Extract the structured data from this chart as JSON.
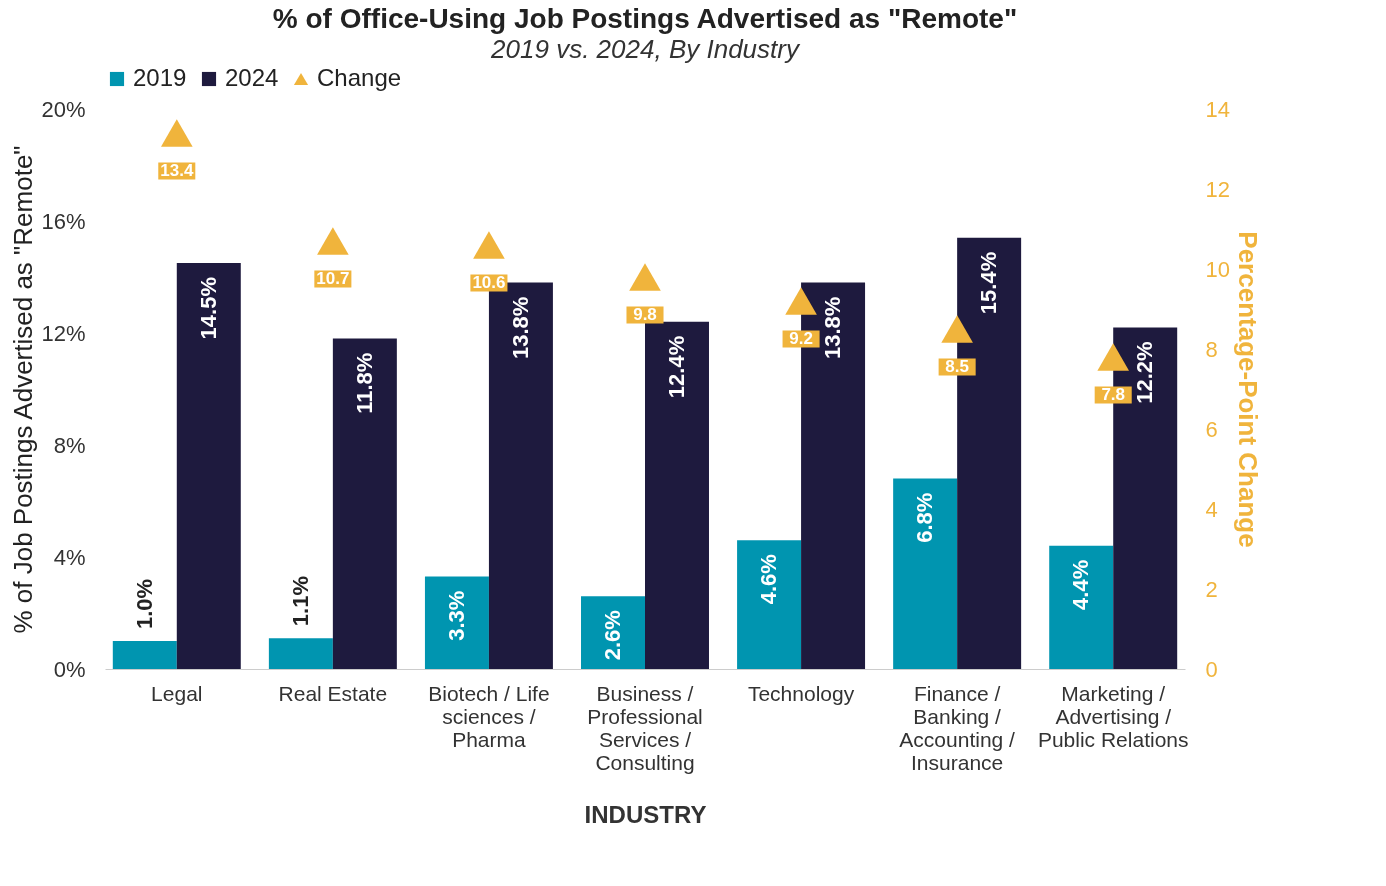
{
  "chart_data": {
    "type": "bar",
    "title": "% of Office-Using Job Postings Advertised as \"Remote\"",
    "subtitle": "2019 vs. 2024, By Industry",
    "xlabel": "INDUSTRY",
    "ylabel": "% of Job Postings Advertised as \"Remote\"",
    "y2label": "Percentage-Point Change",
    "categories": [
      "Legal",
      "Real Estate",
      "Biotech / Life sciences / Pharma",
      "Business / Professional Services / Consulting",
      "Technology",
      "Finance / Banking / Accounting / Insurance",
      "Marketing / Advertising / Public Relations"
    ],
    "series": [
      {
        "name": "2019",
        "color": "#0095b0",
        "values": [
          1.0,
          1.1,
          3.3,
          2.6,
          4.6,
          6.8,
          4.4
        ],
        "value_labels": [
          "1.0%",
          "1.1%",
          "3.3%",
          "2.6%",
          "4.6%",
          "6.8%",
          "4.4%"
        ]
      },
      {
        "name": "2024",
        "color": "#1e1a3e",
        "values": [
          14.5,
          11.8,
          13.8,
          12.4,
          13.8,
          15.4,
          12.2
        ],
        "value_labels": [
          "14.5%",
          "11.8%",
          "13.8%",
          "12.4%",
          "13.8%",
          "15.4%",
          "12.2%"
        ]
      },
      {
        "name": "Change",
        "type": "scatter",
        "axis": "y2",
        "color": "#f0b43c",
        "marker": "triangle",
        "values": [
          13.4,
          10.7,
          10.6,
          9.8,
          9.2,
          8.5,
          7.8
        ],
        "value_labels": [
          "13.4",
          "10.7",
          "10.6",
          "9.8",
          "9.2",
          "8.5",
          "7.8"
        ]
      }
    ],
    "ylim": [
      0,
      20
    ],
    "yticks": [
      {
        "value": 0,
        "label": "0%"
      },
      {
        "value": 4,
        "label": "4%"
      },
      {
        "value": 8,
        "label": "8%"
      },
      {
        "value": 12,
        "label": "12%"
      },
      {
        "value": 16,
        "label": "16%"
      },
      {
        "value": 20,
        "label": "20%"
      }
    ],
    "y2lim": [
      0,
      14
    ],
    "y2ticks": [
      0,
      2,
      4,
      6,
      8,
      10,
      12,
      14
    ],
    "grid": false,
    "legend": "top"
  }
}
